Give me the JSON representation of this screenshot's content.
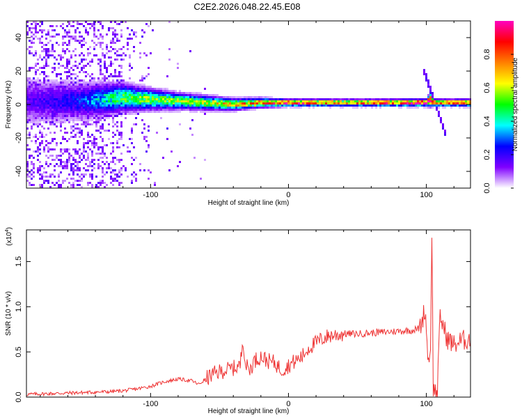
{
  "title": "C2E2.2026.048.22.45.E08",
  "chart_data": [
    {
      "type": "heatmap",
      "title": "",
      "xlabel": "Height of straight line (km)",
      "ylabel": "Frequency (Hz)",
      "xlim": [
        -190,
        132
      ],
      "ylim": [
        -50,
        50
      ],
      "x_ticks": [
        -100,
        0,
        100
      ],
      "y_ticks": [
        -40,
        -20,
        0,
        20,
        40
      ],
      "ridge": {
        "x": [
          -190,
          -150,
          -120,
          -100,
          -80,
          -60,
          -40,
          -20,
          0,
          20,
          40,
          60,
          80,
          95,
          100,
          103,
          105,
          110,
          132
        ],
        "center_freq": [
          2,
          2,
          4,
          3,
          2,
          1,
          0,
          1,
          1,
          1,
          1,
          1,
          1,
          1,
          1,
          3,
          1,
          1,
          1
        ],
        "half_width": [
          10,
          8,
          6,
          4.5,
          3.5,
          3,
          2.5,
          2,
          1.5,
          1.5,
          1.5,
          1.5,
          1.5,
          1.5,
          1.5,
          3,
          1.5,
          1.5,
          1.5
        ],
        "peak_amplitude": [
          0.15,
          0.25,
          0.5,
          0.55,
          0.55,
          0.6,
          0.65,
          0.75,
          0.9,
          0.8,
          0.75,
          0.8,
          0.85,
          0.95,
          0.9,
          0.95,
          0.85,
          0.8,
          0.8
        ]
      },
      "chirp": {
        "x": [
          97,
          115
        ],
        "freq": [
          23,
          -20
        ]
      },
      "noise_region_x": [
        -190,
        -100
      ]
    },
    {
      "type": "colorbar",
      "label": "Normalized spectral amplitude",
      "range": [
        0,
        1
      ],
      "ticks": [
        0.0,
        0.2,
        0.4,
        0.6,
        0.8
      ],
      "colors": [
        "#ffffff",
        "#8000ff",
        "#0000ff",
        "#00ffff",
        "#00ff00",
        "#ffff00",
        "#ff8000",
        "#ff0000",
        "#ff00c0"
      ]
    },
    {
      "type": "line",
      "title": "",
      "xlabel": "Height of straight line (km)",
      "ylabel": "SNR (10 * v/v)",
      "y_multiplier": "(x10",
      "y_multiplier_exp": "4",
      "y_multiplier_close": ")",
      "xlim": [
        -190,
        132
      ],
      "ylim": [
        0,
        1.85
      ],
      "x_ticks": [
        -100,
        0,
        100
      ],
      "y_ticks": [
        0.0,
        0.5,
        1.0,
        1.5
      ],
      "color": "#ee3333",
      "series": [
        {
          "x": [
            -190,
            -170,
            -150,
            -130,
            -120,
            -110,
            -100,
            -90,
            -80,
            -70,
            -65,
            -60,
            -55,
            -50,
            -45,
            -40,
            -35,
            -33,
            -31,
            -28,
            -25,
            -20,
            -15,
            -10,
            -5,
            0,
            5,
            10,
            15,
            20,
            25,
            30,
            40,
            50,
            60,
            70,
            80,
            90,
            95,
            97,
            99,
            100,
            101,
            102,
            103,
            104,
            105,
            106,
            108,
            110,
            112,
            115,
            120,
            125,
            132
          ],
          "y": [
            0.03,
            0.04,
            0.05,
            0.06,
            0.07,
            0.09,
            0.12,
            0.17,
            0.2,
            0.18,
            0.14,
            0.2,
            0.25,
            0.28,
            0.3,
            0.32,
            0.35,
            0.65,
            0.35,
            0.3,
            0.4,
            0.45,
            0.4,
            0.38,
            0.3,
            0.35,
            0.4,
            0.45,
            0.55,
            0.6,
            0.65,
            0.68,
            0.7,
            0.7,
            0.71,
            0.72,
            0.73,
            0.74,
            0.76,
            0.85,
            0.98,
            0.75,
            0.5,
            0.35,
            0.6,
            1.82,
            0.12,
            0.06,
            0.07,
            0.9,
            0.8,
            0.65,
            0.58,
            0.62,
            0.65
          ]
        }
      ]
    }
  ]
}
